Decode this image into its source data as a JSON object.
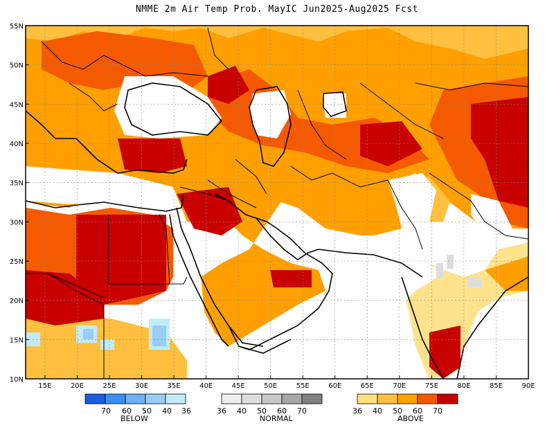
{
  "title": "NMME 2m Air Temp Prob. MayIC  Jun2025-Aug2025 Fcst",
  "map": {
    "lon_range": [
      12,
      90
    ],
    "lat_range": [
      10,
      55
    ],
    "lon_ticks": [
      "15E",
      "20E",
      "25E",
      "30E",
      "35E",
      "40E",
      "45E",
      "50E",
      "55E",
      "60E",
      "65E",
      "70E",
      "75E",
      "80E",
      "85E",
      "90E"
    ],
    "lat_ticks": [
      "10N",
      "15N",
      "20N",
      "25N",
      "30N",
      "35N",
      "40N",
      "45N",
      "50N",
      "55N"
    ]
  },
  "legend": {
    "below": {
      "label": "BELOW",
      "colors": [
        "#1a5fe0",
        "#3a8ff0",
        "#6db0f5",
        "#99cdf8",
        "#c0ecf8"
      ],
      "values": [
        "70",
        "60",
        "50",
        "40",
        "36"
      ]
    },
    "normal": {
      "label": "NORMAL",
      "colors": [
        "#eeeeee",
        "#dddddd",
        "#c8c8c8",
        "#a8a8a8",
        "#808080"
      ],
      "values": [
        "36",
        "40",
        "50",
        "60",
        "70"
      ]
    },
    "above": {
      "label": "ABOVE",
      "colors": [
        "#ffe080",
        "#ffc040",
        "#ffa000",
        "#f55a00",
        "#c80000"
      ],
      "values": [
        "36",
        "40",
        "50",
        "60",
        "70"
      ]
    }
  }
}
